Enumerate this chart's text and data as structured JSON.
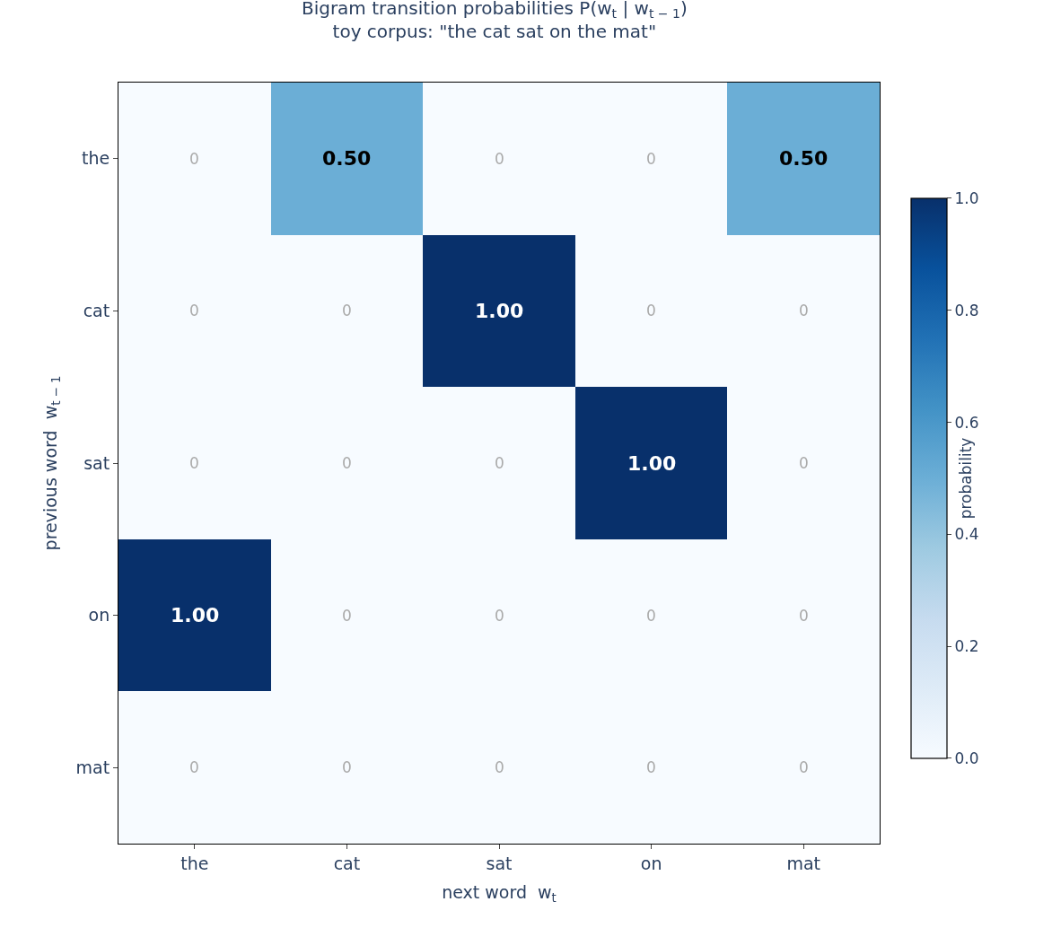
{
  "chart_data": {
    "type": "heatmap",
    "title": "Bigram transition probabilities P(w$_{t}$ | w$_{t − 1}$)",
    "subtitle": "toy corpus: \"the cat sat on the mat\"",
    "xlabel": "next word  w$_{t}$",
    "ylabel": "previous word  w$_{t − 1}$",
    "clabel": "probability",
    "categories": [
      "the",
      "cat",
      "sat",
      "on",
      "mat"
    ],
    "y_categories": [
      "the",
      "cat",
      "sat",
      "on",
      "mat"
    ],
    "cells": [
      [
        0,
        0.5,
        0,
        0,
        0.5
      ],
      [
        0,
        0,
        1,
        0,
        0
      ],
      [
        0,
        0,
        0,
        1,
        0
      ],
      [
        1,
        0,
        0,
        0,
        0
      ],
      [
        0,
        0,
        0,
        0,
        0
      ]
    ],
    "cell_labels": [
      [
        "0",
        "0.50",
        "0",
        "0",
        "0.50"
      ],
      [
        "0",
        "0",
        "1.00",
        "0",
        "0"
      ],
      [
        "0",
        "0",
        "0",
        "1.00",
        "0"
      ],
      [
        "1.00",
        "0",
        "0",
        "0",
        "0"
      ],
      [
        "0",
        "0",
        "0",
        "0",
        "0"
      ]
    ],
    "clim": [
      0,
      1
    ],
    "cticks": [
      {
        "value": 0,
        "label": "0.0"
      },
      {
        "value": 0.2,
        "label": "0.2"
      },
      {
        "value": 0.4,
        "label": "0.4"
      },
      {
        "value": 0.6,
        "label": "0.6"
      },
      {
        "value": 0.8,
        "label": "0.8"
      },
      {
        "value": 1,
        "label": "1.0"
      }
    ]
  }
}
